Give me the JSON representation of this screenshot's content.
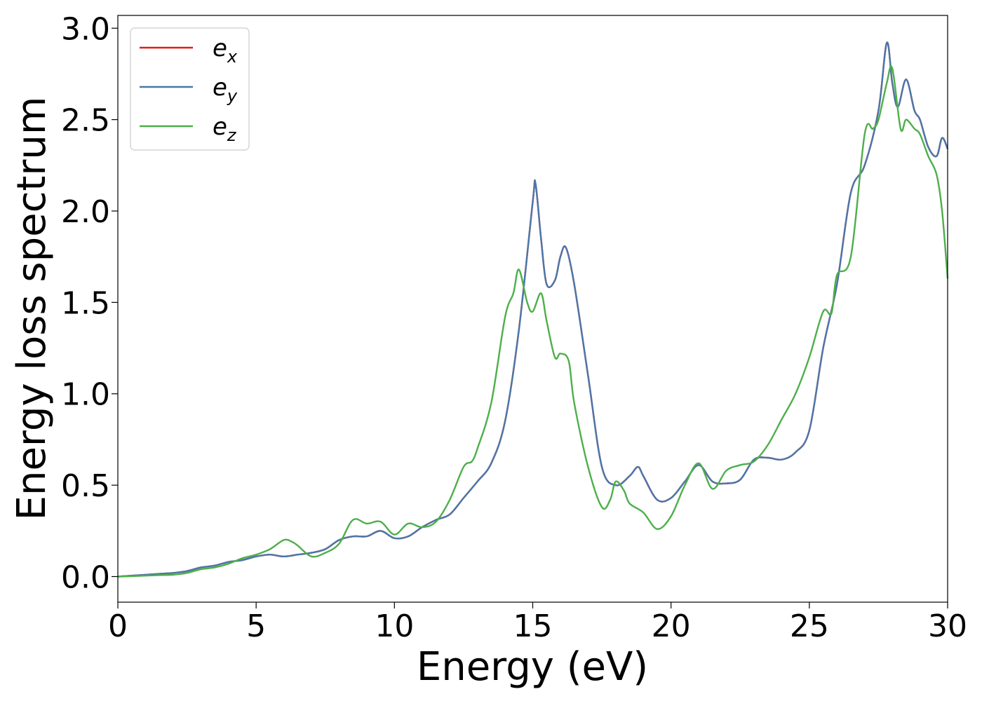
{
  "chart_data": {
    "type": "line",
    "title": "",
    "xlabel": "Energy (eV)",
    "ylabel": "Energy loss spectrum",
    "xlim": [
      0,
      30
    ],
    "ylim": [
      -0.14,
      3.07
    ],
    "xticks": [
      0,
      5,
      10,
      15,
      20,
      25,
      30
    ],
    "xtick_labels": [
      "0",
      "5",
      "10",
      "15",
      "20",
      "25",
      "30"
    ],
    "yticks": [
      0.0,
      0.5,
      1.0,
      1.5,
      2.0,
      2.5,
      3.0
    ],
    "ytick_labels": [
      "0.0",
      "0.5",
      "1.0",
      "1.5",
      "2.0",
      "2.5",
      "3.0"
    ],
    "grid": false,
    "legend_position": "top-left",
    "series": [
      {
        "name": "e_x",
        "label_base": "e",
        "label_sub": "x",
        "color": "#e41a1c",
        "x": [
          0,
          0.5,
          1,
          1.5,
          2,
          2.5,
          3,
          3.5,
          4,
          4.5,
          5,
          5.5,
          6,
          6.5,
          7,
          7.5,
          8,
          8.5,
          9,
          9.5,
          10,
          10.5,
          11,
          11.5,
          12,
          12.5,
          13,
          13.5,
          14,
          14.5,
          15,
          15.1,
          15.3,
          15.5,
          15.8,
          16,
          16.2,
          16.5,
          17,
          17.5,
          18,
          18.5,
          18.8,
          19,
          19.5,
          20,
          20.5,
          21,
          21.5,
          22,
          22.5,
          23,
          23.5,
          24,
          24.5,
          25,
          25.5,
          26,
          26.5,
          27,
          27.5,
          27.8,
          28,
          28.2,
          28.5,
          28.8,
          29,
          29.3,
          29.6,
          29.8,
          30
        ],
        "y": [
          0,
          0.005,
          0.01,
          0.015,
          0.02,
          0.03,
          0.05,
          0.06,
          0.08,
          0.09,
          0.11,
          0.12,
          0.11,
          0.12,
          0.13,
          0.15,
          0.2,
          0.22,
          0.22,
          0.25,
          0.21,
          0.22,
          0.27,
          0.31,
          0.34,
          0.43,
          0.52,
          0.62,
          0.85,
          1.35,
          2.05,
          2.15,
          1.85,
          1.6,
          1.62,
          1.75,
          1.8,
          1.6,
          1.1,
          0.6,
          0.5,
          0.55,
          0.6,
          0.55,
          0.42,
          0.43,
          0.52,
          0.61,
          0.52,
          0.51,
          0.53,
          0.64,
          0.65,
          0.64,
          0.68,
          0.8,
          1.25,
          1.6,
          2.1,
          2.25,
          2.55,
          2.92,
          2.7,
          2.57,
          2.72,
          2.55,
          2.5,
          2.35,
          2.3,
          2.4,
          2.34
        ]
      },
      {
        "name": "e_y",
        "label_base": "e",
        "label_sub": "y",
        "color": "#4a77aa",
        "x": [
          0,
          0.5,
          1,
          1.5,
          2,
          2.5,
          3,
          3.5,
          4,
          4.5,
          5,
          5.5,
          6,
          6.5,
          7,
          7.5,
          8,
          8.5,
          9,
          9.5,
          10,
          10.5,
          11,
          11.5,
          12,
          12.5,
          13,
          13.5,
          14,
          14.5,
          15,
          15.1,
          15.3,
          15.5,
          15.8,
          16,
          16.2,
          16.5,
          17,
          17.5,
          18,
          18.5,
          18.8,
          19,
          19.5,
          20,
          20.5,
          21,
          21.5,
          22,
          22.5,
          23,
          23.5,
          24,
          24.5,
          25,
          25.5,
          26,
          26.5,
          27,
          27.5,
          27.8,
          28,
          28.2,
          28.5,
          28.8,
          29,
          29.3,
          29.6,
          29.8,
          30
        ],
        "y": [
          0,
          0.005,
          0.01,
          0.015,
          0.02,
          0.03,
          0.05,
          0.06,
          0.08,
          0.09,
          0.11,
          0.12,
          0.11,
          0.12,
          0.13,
          0.15,
          0.2,
          0.22,
          0.22,
          0.25,
          0.21,
          0.22,
          0.27,
          0.31,
          0.34,
          0.43,
          0.52,
          0.62,
          0.85,
          1.35,
          2.05,
          2.15,
          1.85,
          1.6,
          1.62,
          1.75,
          1.8,
          1.6,
          1.1,
          0.6,
          0.5,
          0.55,
          0.6,
          0.55,
          0.42,
          0.43,
          0.52,
          0.61,
          0.52,
          0.51,
          0.53,
          0.64,
          0.65,
          0.64,
          0.68,
          0.8,
          1.25,
          1.6,
          2.1,
          2.25,
          2.55,
          2.92,
          2.7,
          2.57,
          2.72,
          2.55,
          2.5,
          2.35,
          2.3,
          2.4,
          2.34
        ]
      },
      {
        "name": "e_z",
        "label_base": "e",
        "label_sub": "z",
        "color": "#4daf4a",
        "x": [
          0,
          0.5,
          1,
          1.5,
          2,
          2.5,
          3,
          3.5,
          4,
          4.5,
          5,
          5.5,
          6,
          6.3,
          6.5,
          7,
          7.5,
          8,
          8.5,
          9,
          9.5,
          10,
          10.5,
          11,
          11.5,
          12,
          12.5,
          12.8,
          13,
          13.5,
          14,
          14.3,
          14.5,
          14.8,
          15,
          15.3,
          15.5,
          15.8,
          16,
          16.3,
          16.5,
          17,
          17.5,
          17.8,
          18,
          18.3,
          18.5,
          19,
          19.5,
          20,
          20.5,
          21,
          21.5,
          22,
          22.5,
          23,
          23.5,
          24,
          24.5,
          25,
          25.5,
          25.8,
          26,
          26.5,
          27,
          27.3,
          27.5,
          27.8,
          28,
          28.3,
          28.5,
          28.8,
          29,
          29.3,
          29.6,
          29.8,
          30
        ],
        "y": [
          0,
          0.002,
          0.005,
          0.008,
          0.01,
          0.02,
          0.04,
          0.05,
          0.07,
          0.1,
          0.12,
          0.15,
          0.2,
          0.19,
          0.17,
          0.11,
          0.13,
          0.18,
          0.31,
          0.29,
          0.3,
          0.23,
          0.29,
          0.27,
          0.3,
          0.42,
          0.6,
          0.63,
          0.7,
          0.95,
          1.42,
          1.55,
          1.68,
          1.5,
          1.45,
          1.55,
          1.4,
          1.2,
          1.22,
          1.18,
          0.95,
          0.6,
          0.38,
          0.42,
          0.52,
          0.47,
          0.4,
          0.35,
          0.26,
          0.33,
          0.5,
          0.62,
          0.48,
          0.58,
          0.61,
          0.63,
          0.72,
          0.86,
          1.0,
          1.2,
          1.45,
          1.44,
          1.65,
          1.75,
          2.42,
          2.45,
          2.5,
          2.7,
          2.78,
          2.45,
          2.5,
          2.45,
          2.42,
          2.3,
          2.2,
          2.0,
          1.63
        ]
      }
    ]
  }
}
